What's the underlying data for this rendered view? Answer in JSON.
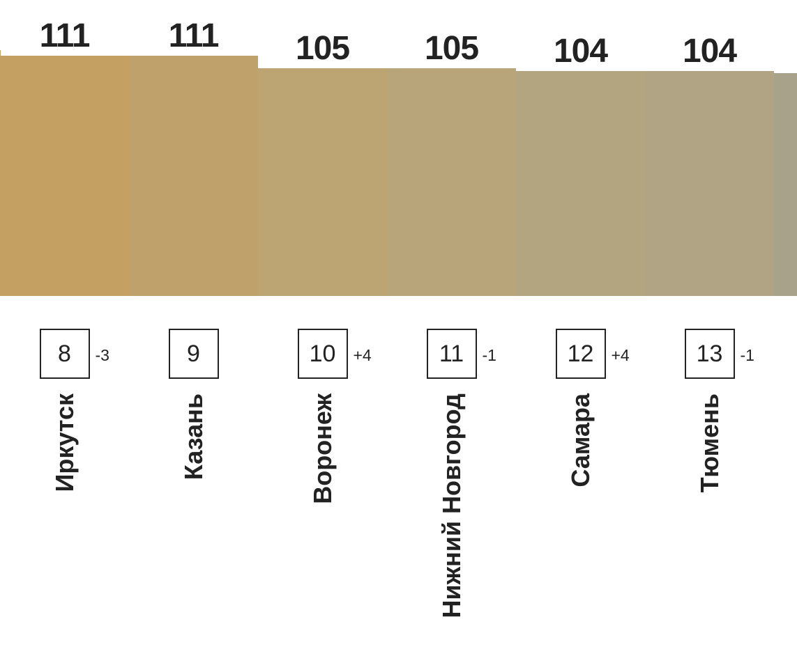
{
  "chart_data": {
    "type": "bar",
    "title": "",
    "xlabel": "",
    "ylabel": "",
    "ylim": [
      0,
      111
    ],
    "grid": false,
    "categories": [
      "Иркутск",
      "Казань",
      "Воронеж",
      "Нижний Новгород",
      "Самара",
      "Тюмень"
    ],
    "values": [
      111,
      111,
      105,
      105,
      104,
      104
    ],
    "ranks": [
      "8",
      "9",
      "10",
      "11",
      "12",
      "13"
    ],
    "rank_changes": [
      "-3",
      "",
      "+4",
      "-1",
      "+4",
      "-1"
    ],
    "colors": [
      "#c4a063",
      "#bfa16c",
      "#bca473",
      "#b9a57a",
      "#b3a580",
      "#b0a485"
    ],
    "partial_next_bar_color": "#a9a28b"
  }
}
